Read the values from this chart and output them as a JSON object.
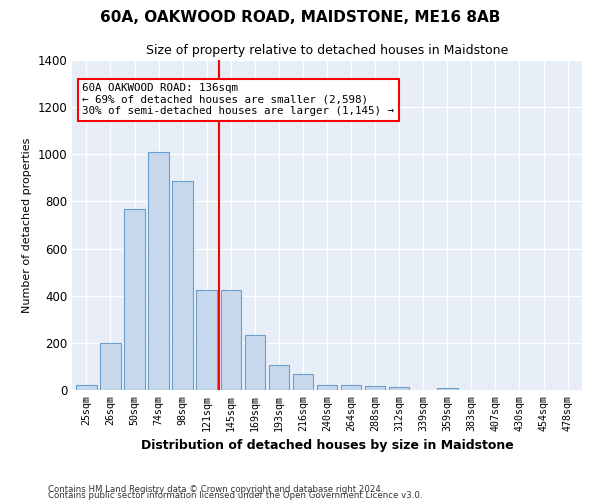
{
  "title": "60A, OAKWOOD ROAD, MAIDSTONE, ME16 8AB",
  "subtitle": "Size of property relative to detached houses in Maidstone",
  "xlabel": "Distribution of detached houses by size in Maidstone",
  "ylabel": "Number of detached properties",
  "bar_color": "#c8d8ec",
  "bar_edge_color": "#6b9ec8",
  "background_color": "#e8eef8",
  "categories": [
    "25sqm",
    "26sqm",
    "50sqm",
    "74sqm",
    "98sqm",
    "121sqm",
    "145sqm",
    "169sqm",
    "193sqm",
    "216sqm",
    "240sqm",
    "264sqm",
    "288sqm",
    "312sqm",
    "339sqm",
    "359sqm",
    "383sqm",
    "407sqm",
    "430sqm",
    "454sqm",
    "478sqm"
  ],
  "bar_heights": [
    20,
    200,
    770,
    1010,
    885,
    425,
    425,
    235,
    108,
    68,
    20,
    20,
    18,
    12,
    0,
    10,
    0,
    0,
    0,
    0,
    0
  ],
  "ylim": [
    0,
    1400
  ],
  "yticks": [
    0,
    200,
    400,
    600,
    800,
    1000,
    1200,
    1400
  ],
  "vline_x": 5.5,
  "annotation_title": "60A OAKWOOD ROAD: 136sqm",
  "annotation_line1": "← 69% of detached houses are smaller (2,598)",
  "annotation_line2": "30% of semi-detached houses are larger (1,145) →",
  "footer1": "Contains HM Land Registry data © Crown copyright and database right 2024.",
  "footer2": "Contains public sector information licensed under the Open Government Licence v3.0."
}
